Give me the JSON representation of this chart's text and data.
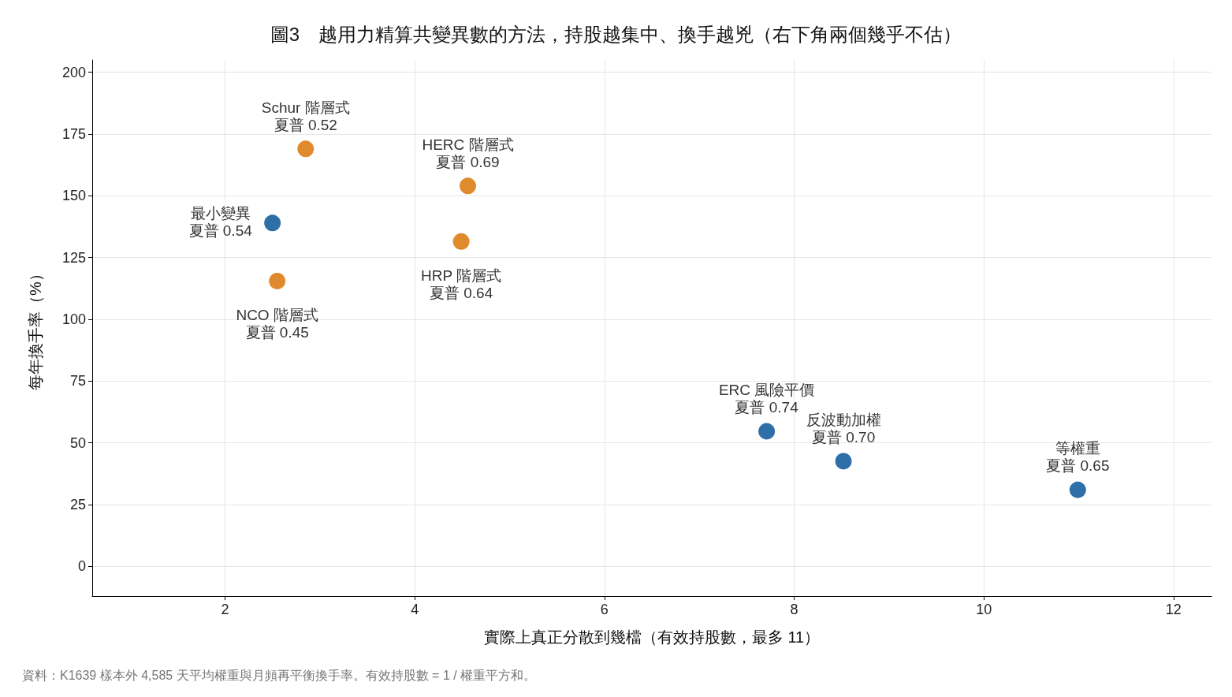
{
  "chart_data": {
    "type": "scatter",
    "title": "圖3　越用力精算共變異數的方法，持股越集中、換手越兇（右下角兩個幾乎不估）",
    "xlabel": "實際上真正分散到幾檔（有效持股數，最多 11）",
    "ylabel": "每年換手率（%）",
    "series": [
      {
        "color": "#2e6fa8",
        "x": [
          2.5,
          7.71,
          8.52,
          10.99
        ],
        "values": [
          139,
          54.7,
          42.6,
          31
        ]
      },
      {
        "color": "#e08a2e",
        "x": [
          2.85,
          4.56,
          4.49,
          2.55
        ],
        "values": [
          169,
          154,
          131.5,
          115.5
        ]
      }
    ],
    "annotations": [
      {
        "text": "最小變異",
        "x": 2.5,
        "y": 139
      },
      {
        "text": "夏普 0.54",
        "x": 2.5,
        "y": 139
      },
      {
        "text": "ERC 風險平價",
        "x": 7.71,
        "y": 54.7
      },
      {
        "text": "夏普 0.74",
        "x": 7.71,
        "y": 54.7
      },
      {
        "text": "反波動加權",
        "x": 8.52,
        "y": 42.6
      },
      {
        "text": "夏普 0.70",
        "x": 8.52,
        "y": 42.6
      },
      {
        "text": "等權重",
        "x": 10.99,
        "y": 31
      },
      {
        "text": "夏普 0.65",
        "x": 10.99,
        "y": 31
      },
      {
        "text": "Schur 階層式",
        "x": 2.85,
        "y": 169
      },
      {
        "text": "夏普 0.52",
        "x": 2.85,
        "y": 169
      },
      {
        "text": "HERC 階層式",
        "x": 4.56,
        "y": 154
      },
      {
        "text": "夏普 0.69",
        "x": 4.56,
        "y": 154
      },
      {
        "text": "HRP 階層式",
        "x": 4.49,
        "y": 131.5
      },
      {
        "text": "夏普 0.64",
        "x": 4.49,
        "y": 131.5
      },
      {
        "text": "NCO 階層式",
        "x": 2.55,
        "y": 115.5
      },
      {
        "text": "夏普 0.45",
        "x": 2.55,
        "y": 115.5
      },
      "資料：K1639 樣本外 4,585 天平均權重與月頻再平衡換手率。有效持股數 = 1 / 權重平方和。"
    ],
    "xlim": [
      0.6,
      12.4
    ],
    "xticks": [
      2,
      4,
      6,
      8,
      10,
      12
    ],
    "ylim": [
      -12,
      205
    ],
    "yticks": [
      0,
      25,
      50,
      75,
      100,
      125,
      150,
      175,
      200
    ],
    "grid": true,
    "marker": "circle"
  }
}
